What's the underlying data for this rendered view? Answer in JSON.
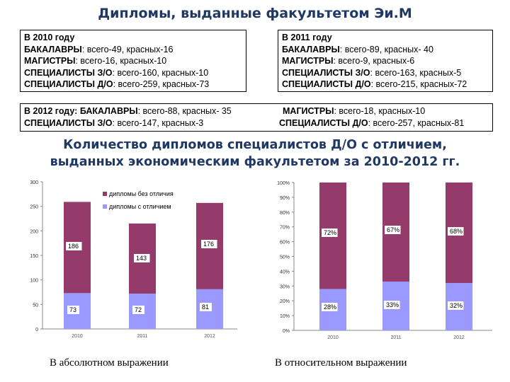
{
  "title": "Дипломы, выданные факультетом Эи.М",
  "boxes": {
    "y2010": {
      "heading": "В 2010 году",
      "lines": [
        {
          "label": "БАКАЛАВРЫ",
          "text": ": всего-49, красных-16"
        },
        {
          "label": "МАГИСТРЫ",
          "text": ": всего-16, красных-10"
        },
        {
          "label": "СПЕЦИАЛИСТЫ З/О",
          "text": ": всего-160, красных-10"
        },
        {
          "label": "СПЕЦИАЛИСТЫ Д/О",
          "text": ": всего-259, красных-73"
        }
      ]
    },
    "y2011": {
      "heading": "В 2011 году",
      "lines": [
        {
          "label": "БАКАЛАВРЫ",
          "text": ": всего-89, красных- 40"
        },
        {
          "label": "МАГИСТРЫ",
          "text": ": всего-9, красных-6"
        },
        {
          "label": "СПЕЦИАЛИСТЫ З/О",
          "text": ": всего-163, красных-5"
        },
        {
          "label": "СПЕЦИАЛИСТЫ Д/О",
          "text": ": всего-215, красных-72"
        }
      ]
    },
    "y2012": {
      "row1": {
        "heading": "В 2012 году: ",
        "label": "БАКАЛАВРЫ",
        "text": ": всего-88, красных- 35",
        "label2": "МАГИСТРЫ",
        "text2": ": всего-18, красных-10"
      },
      "row2": {
        "label": "СПЕЦИАЛИСТЫ З/О",
        "text": ": всего-147, красных-3",
        "label2": "СПЕЦИАЛИСТЫ Д/О",
        "text2": ": всего-257, красных-81"
      }
    }
  },
  "headline": {
    "line1": "Количество дипломов специалистов Д/О с отличием,",
    "line2": "выданных экономическим факультетом за 2010-2012 гг."
  },
  "captions": {
    "left": "В абсолютном выражении",
    "right": "В относительном выражении"
  },
  "colors": {
    "without_honors": "#953b6b",
    "with_honors": "#9999ff",
    "title": "#1f3864"
  },
  "chart_data": [
    {
      "type": "bar",
      "stacked": true,
      "categories": [
        "2010",
        "2011",
        "2012"
      ],
      "ylim": [
        0,
        300
      ],
      "yticks": [
        "0",
        "50",
        "100",
        "150",
        "200",
        "250",
        "300"
      ],
      "legend_position": "top-left",
      "series": [
        {
          "name": "дипломы без отличия",
          "values": [
            186,
            143,
            176
          ],
          "labels": [
            "186",
            "143",
            "176"
          ]
        },
        {
          "name": "дипломы с отличием",
          "values": [
            73,
            72,
            81
          ],
          "labels": [
            "73",
            "72",
            "81"
          ]
        }
      ]
    },
    {
      "type": "bar",
      "stacked": true,
      "percent": true,
      "categories": [
        "2010",
        "2011",
        "2012"
      ],
      "ylim": [
        0,
        100
      ],
      "yticks": [
        "0%",
        "10%",
        "20%",
        "30%",
        "40%",
        "50%",
        "60%",
        "70%",
        "80%",
        "90%",
        "100%"
      ],
      "series": [
        {
          "name": "дипломы без отличия",
          "values": [
            72,
            67,
            68
          ],
          "labels": [
            "72%",
            "67%",
            "68%"
          ]
        },
        {
          "name": "дипломы с отличием",
          "values": [
            28,
            33,
            32
          ],
          "labels": [
            "28%",
            "33%",
            "32%"
          ]
        }
      ]
    }
  ]
}
